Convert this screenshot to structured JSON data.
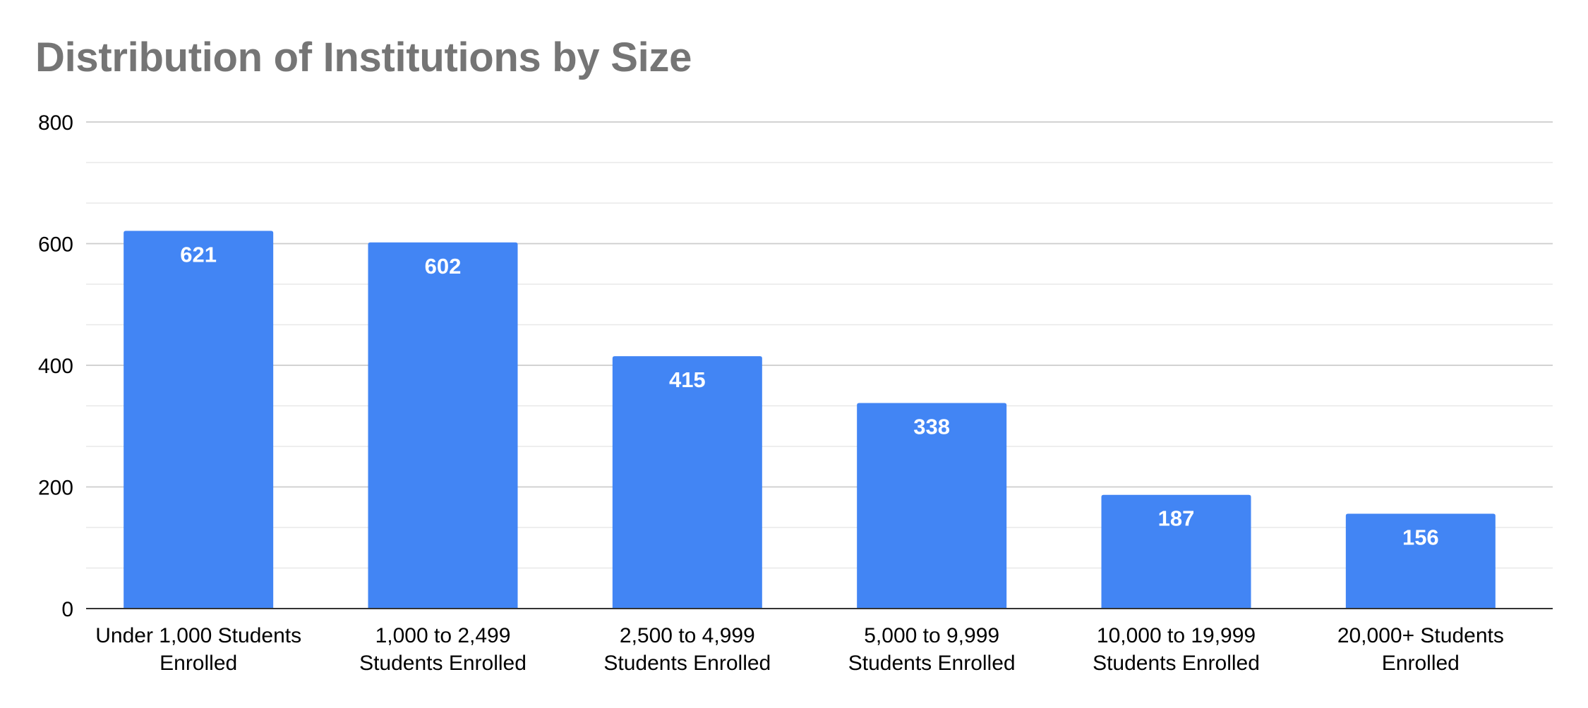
{
  "chart_data": {
    "type": "bar",
    "title": "Distribution of Institutions by Size",
    "xlabel": "",
    "ylabel": "",
    "categories": [
      [
        "Under 1,000 Students",
        "Enrolled"
      ],
      [
        "1,000 to 2,499",
        "Students Enrolled"
      ],
      [
        "2,500 to 4,999",
        "Students Enrolled"
      ],
      [
        "5,000 to 9,999",
        "Students Enrolled"
      ],
      [
        "10,000 to 19,999",
        "Students Enrolled"
      ],
      [
        "20,000+ Students",
        "Enrolled"
      ]
    ],
    "values": [
      621,
      602,
      415,
      338,
      187,
      156
    ],
    "ylim": [
      0,
      800
    ],
    "y_ticks": [
      0,
      200,
      400,
      600,
      800
    ],
    "minor_gridlines": true,
    "grid": true,
    "legend": "none",
    "colors": {
      "bar": "#4285F4",
      "title": "#757575",
      "gridline_major": "#cccccc",
      "gridline_minor": "#e8e8e8",
      "axis": "#333333"
    }
  }
}
